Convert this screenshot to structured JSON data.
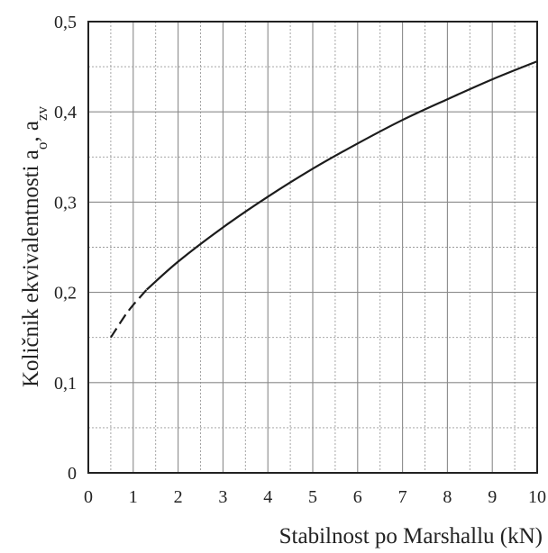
{
  "chart_data": {
    "type": "line",
    "title": "",
    "xlabel": "Stabilnost po Marshallu (kN)",
    "ylabel_text": "Količnik ekvivalentnosti a",
    "ylabel_sub1": "o",
    "ylabel_sep": ", a",
    "ylabel_sub2": "zv",
    "xlim": [
      0,
      10
    ],
    "ylim": [
      0,
      0.5
    ],
    "grid": true,
    "x_ticks": [
      0,
      1,
      2,
      3,
      4,
      5,
      6,
      7,
      8,
      9,
      10
    ],
    "x_tick_labels": [
      "0",
      "1",
      "2",
      "3",
      "4",
      "5",
      "6",
      "7",
      "8",
      "9",
      "10"
    ],
    "y_ticks": [
      0,
      0.1,
      0.2,
      0.3,
      0.4,
      0.5
    ],
    "y_tick_labels": [
      "0",
      "0,1",
      "0,2",
      "0,3",
      "0,4",
      "0,5"
    ],
    "series": [
      {
        "style": "dashed",
        "x": [
          0.5,
          0.8,
          1.0,
          1.3
        ],
        "y": [
          0.15,
          0.173,
          0.186,
          0.203
        ]
      },
      {
        "style": "solid",
        "x": [
          1.3,
          2,
          3,
          4,
          5,
          6,
          7,
          8,
          9,
          10
        ],
        "y": [
          0.203,
          0.234,
          0.272,
          0.306,
          0.337,
          0.365,
          0.391,
          0.414,
          0.436,
          0.456
        ]
      }
    ],
    "colors": {
      "line": "#1c1c1c",
      "grid": "#8a8a8a",
      "frame": "#222222",
      "background": "#ffffff"
    }
  }
}
